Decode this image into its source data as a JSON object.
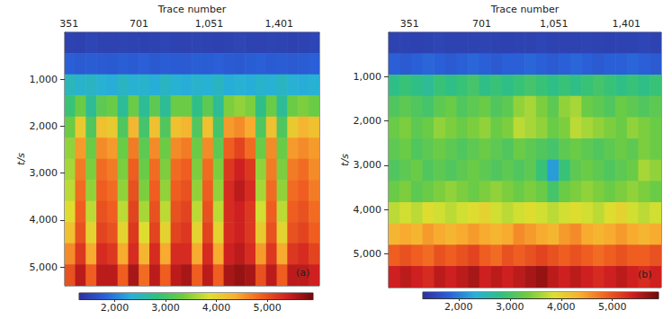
{
  "chart_data": [
    {
      "type": "heatmap",
      "x_label": "Trace number",
      "y_label": "t/s",
      "annotation": "(a)",
      "xlim": [
        330,
        1602
      ],
      "xticks": [
        351,
        701,
        1051,
        1401
      ],
      "ylim": [
        0,
        5400
      ],
      "yticks": [
        1000,
        2000,
        3000,
        4000,
        5000
      ],
      "x_edges": [
        330,
        383,
        436,
        489,
        542,
        595,
        648,
        701,
        754,
        807,
        860,
        913,
        966,
        1019,
        1072,
        1125,
        1178,
        1231,
        1284,
        1337,
        1390,
        1443,
        1496,
        1549,
        1602
      ],
      "y_edges": [
        0,
        450,
        900,
        1350,
        1800,
        2250,
        2700,
        3150,
        3600,
        4050,
        4500,
        4950,
        5400
      ],
      "values": [
        [
          1500,
          1480,
          1520,
          1500,
          1490,
          1510,
          1500,
          1480,
          1500,
          1520,
          1500,
          1490,
          1510,
          1500,
          1480,
          1500,
          1520,
          1500,
          1490,
          1510,
          1500,
          1480,
          1500,
          1520
        ],
        [
          1800,
          1750,
          1780,
          1760,
          1740,
          1790,
          1760,
          1800,
          1740,
          1780,
          1760,
          1750,
          1790,
          1770,
          1800,
          1760,
          1740,
          1780,
          1800,
          1760,
          1780,
          1750,
          1770,
          1800
        ],
        [
          2500,
          2400,
          2450,
          2350,
          2300,
          2450,
          2350,
          2400,
          2300,
          2450,
          2350,
          2300,
          2400,
          2350,
          2450,
          2300,
          2350,
          2300,
          2400,
          2350,
          2450,
          2350,
          2300,
          2350
        ],
        [
          2900,
          3300,
          2700,
          3200,
          3300,
          2700,
          3300,
          2700,
          3200,
          2700,
          3300,
          3300,
          2800,
          3200,
          2700,
          3400,
          3500,
          3400,
          2800,
          3300,
          2700,
          3300,
          3400,
          3300
        ],
        [
          3300,
          4100,
          3100,
          4200,
          4100,
          3100,
          4300,
          3000,
          4200,
          3100,
          4200,
          4300,
          3100,
          4200,
          3000,
          4500,
          4600,
          4400,
          3100,
          4200,
          3100,
          4100,
          4300,
          4200
        ],
        [
          3500,
          4500,
          3300,
          4600,
          4500,
          3300,
          4700,
          3200,
          4600,
          3300,
          4600,
          4700,
          3300,
          4600,
          3200,
          4900,
          5100,
          4800,
          3300,
          4600,
          3300,
          4500,
          4600,
          4500
        ],
        [
          3600,
          4700,
          3400,
          4800,
          4700,
          3400,
          4900,
          3300,
          4800,
          3400,
          4800,
          4900,
          3400,
          4800,
          3400,
          5200,
          5400,
          5200,
          3500,
          4700,
          3400,
          4700,
          4800,
          4600
        ],
        [
          3700,
          4800,
          3500,
          4900,
          4800,
          3500,
          5000,
          3400,
          4900,
          3500,
          4900,
          5000,
          3500,
          4900,
          3500,
          5300,
          5500,
          5300,
          3600,
          4800,
          3500,
          4800,
          4900,
          4700
        ],
        [
          3900,
          4900,
          3700,
          5000,
          4900,
          3700,
          5100,
          3600,
          5000,
          3700,
          5000,
          5100,
          3700,
          5000,
          3700,
          5300,
          5400,
          5200,
          3800,
          4900,
          3700,
          4900,
          5000,
          4800
        ],
        [
          4200,
          5000,
          4000,
          5100,
          5000,
          4000,
          5200,
          3900,
          5100,
          4000,
          5100,
          5200,
          4000,
          5100,
          4000,
          5300,
          5400,
          5200,
          4100,
          5000,
          4000,
          5000,
          5100,
          4900
        ],
        [
          4600,
          5200,
          4400,
          5300,
          5200,
          4400,
          5300,
          4300,
          5300,
          4400,
          5300,
          5300,
          4400,
          5300,
          4400,
          5400,
          5500,
          5300,
          4500,
          5200,
          4400,
          5200,
          5300,
          5100
        ],
        [
          5000,
          5500,
          4900,
          5500,
          5500,
          4900,
          5600,
          4800,
          5500,
          4900,
          5500,
          5600,
          4900,
          5500,
          4900,
          5600,
          5700,
          5600,
          5000,
          5500,
          4900,
          5500,
          5500,
          5400
        ]
      ],
      "colorbar": {
        "range": [
          1300,
          5900
        ],
        "ticks": [
          2000,
          3000,
          4000,
          5000
        ]
      }
    },
    {
      "type": "heatmap",
      "x_label": "Trace number",
      "y_label": "t/s",
      "annotation": "(b)",
      "xlim": [
        250,
        1570
      ],
      "xticks": [
        351,
        701,
        1051,
        1401
      ],
      "ylim": [
        0,
        5760
      ],
      "yticks": [
        1000,
        2000,
        3000,
        4000,
        5000
      ],
      "x_edges": [
        250,
        305,
        360,
        415,
        470,
        525,
        580,
        635,
        690,
        745,
        800,
        855,
        910,
        965,
        1020,
        1075,
        1130,
        1185,
        1240,
        1295,
        1350,
        1405,
        1460,
        1515,
        1570
      ],
      "y_edges": [
        0,
        480,
        960,
        1440,
        1920,
        2400,
        2880,
        3360,
        3840,
        4320,
        4800,
        5280,
        5760
      ],
      "values": [
        [
          1500,
          1500,
          1480,
          1500,
          1520,
          1500,
          1490,
          1500,
          1510,
          1500,
          1480,
          1500,
          1500,
          1520,
          1500,
          1490,
          1500,
          1510,
          1500,
          1480,
          1500,
          1500,
          1520,
          1500
        ],
        [
          1800,
          1750,
          1800,
          1850,
          1800,
          1750,
          1800,
          1850,
          1800,
          1750,
          1800,
          1800,
          1850,
          1800,
          1750,
          1800,
          1850,
          1800,
          1750,
          1800,
          1800,
          1850,
          1800,
          1750
        ],
        [
          2800,
          2900,
          2800,
          2700,
          2900,
          2800,
          2900,
          3000,
          2800,
          2900,
          2800,
          2900,
          3000,
          2900,
          2800,
          2900,
          2800,
          2900,
          3000,
          2900,
          2800,
          2900,
          2800,
          2900
        ],
        [
          3100,
          3200,
          3100,
          3000,
          3200,
          3300,
          3100,
          3200,
          3300,
          3100,
          3200,
          3500,
          3600,
          3400,
          3200,
          3500,
          3600,
          3300,
          3200,
          3100,
          3300,
          3200,
          3100,
          3200
        ],
        [
          3300,
          3400,
          3200,
          3300,
          3500,
          3400,
          3300,
          3400,
          3500,
          3300,
          3400,
          3700,
          3600,
          3500,
          3300,
          3400,
          3700,
          3600,
          3500,
          3400,
          3300,
          3500,
          3400,
          3300
        ],
        [
          3200,
          3300,
          3100,
          3200,
          3300,
          3200,
          3100,
          3200,
          3300,
          3200,
          3100,
          3300,
          3200,
          3100,
          3000,
          3200,
          3300,
          3200,
          3100,
          3200,
          3300,
          3200,
          3400,
          3300
        ],
        [
          3100,
          3200,
          3300,
          3100,
          3200,
          3100,
          3200,
          3300,
          3200,
          3100,
          3200,
          3100,
          3200,
          2900,
          2200,
          2900,
          3200,
          3300,
          3200,
          3100,
          3200,
          3300,
          3600,
          3500
        ],
        [
          3300,
          3400,
          3200,
          3300,
          3400,
          3500,
          3400,
          3300,
          3400,
          3500,
          3400,
          3300,
          3400,
          3300,
          3000,
          3300,
          3400,
          3500,
          3400,
          3300,
          3400,
          3500,
          3400,
          3300
        ],
        [
          3700,
          3800,
          3700,
          3900,
          3800,
          3700,
          3800,
          3900,
          4000,
          3800,
          3700,
          3800,
          3900,
          3800,
          3700,
          3800,
          3900,
          3800,
          3700,
          3900,
          4000,
          3800,
          3700,
          3800
        ],
        [
          4300,
          4400,
          4300,
          4500,
          4400,
          4300,
          4400,
          4500,
          4400,
          4300,
          4400,
          4600,
          4500,
          4400,
          4300,
          4500,
          4600,
          4400,
          4300,
          4400,
          4500,
          4400,
          4300,
          4400
        ],
        [
          4900,
          5000,
          4900,
          4800,
          5000,
          4900,
          5000,
          5100,
          4900,
          4800,
          5000,
          4900,
          5000,
          5100,
          5000,
          4900,
          5000,
          4900,
          4800,
          4900,
          5000,
          4900,
          4900,
          5000
        ],
        [
          5400,
          5500,
          5400,
          5300,
          5500,
          5400,
          5500,
          5600,
          5400,
          5500,
          5400,
          5500,
          5600,
          5700,
          5500,
          5400,
          5500,
          5400,
          5300,
          5400,
          5500,
          5400,
          5300,
          5400
        ]
      ],
      "colorbar": {
        "range": [
          1300,
          5900
        ],
        "ticks": [
          2000,
          3000,
          4000,
          5000
        ]
      }
    }
  ]
}
